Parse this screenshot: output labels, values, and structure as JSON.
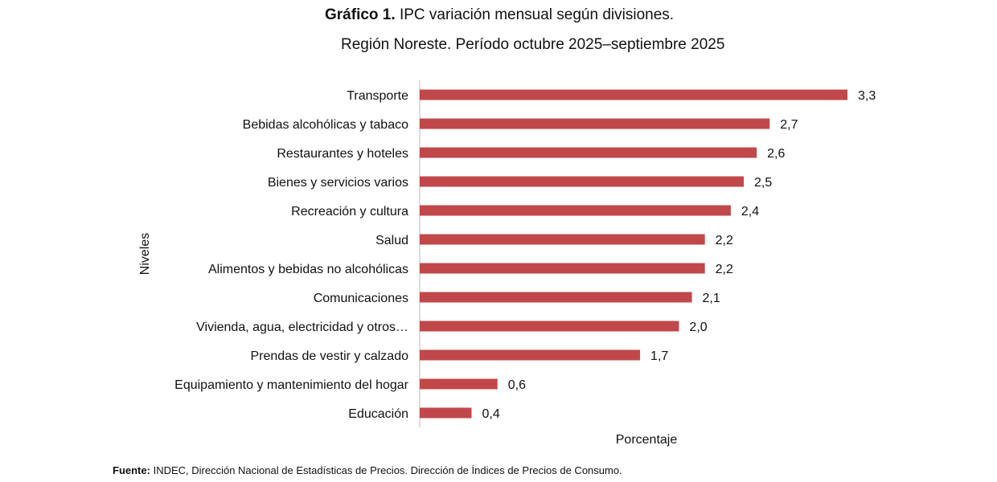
{
  "chart_data": {
    "type": "bar",
    "orientation": "horizontal",
    "title_bold": "Gráfico 1.",
    "title": "IPC variación mensual según divisiones.",
    "subtitle": "Región Noreste. Período octubre 2025–septiembre 2025",
    "ylabel": "Niveles",
    "xlabel": "Porcentaje",
    "categories": [
      "Transporte",
      "Bebidas alcohólicas y tabaco",
      "Restaurantes y hoteles",
      "Bienes y servicios varios",
      "Recreación y cultura",
      "Salud",
      "Alimentos y bebidas no alcohólicas",
      "Comunicaciones",
      "Vivienda, agua, electricidad y otros…",
      "Prendas de vestir y calzado",
      "Equipamiento y mantenimiento del hogar",
      "Educación"
    ],
    "values": [
      3.3,
      2.7,
      2.6,
      2.5,
      2.4,
      2.2,
      2.2,
      2.1,
      2.0,
      1.7,
      0.6,
      0.4
    ],
    "data_labels": [
      "3,3",
      "2,7",
      "2,6",
      "2,5",
      "2,4",
      "2,2",
      "2,2",
      "2,1",
      "2,0",
      "1,7",
      "0,6",
      "0,4"
    ],
    "xlim": [
      0,
      3.3
    ],
    "grid": false,
    "bar_color": "#c0474a"
  },
  "source": {
    "label": "Fuente:",
    "text": "INDEC, Dirección Nacional de Estadísticas de Precios. Dirección de Índices de Precios de Consumo."
  }
}
